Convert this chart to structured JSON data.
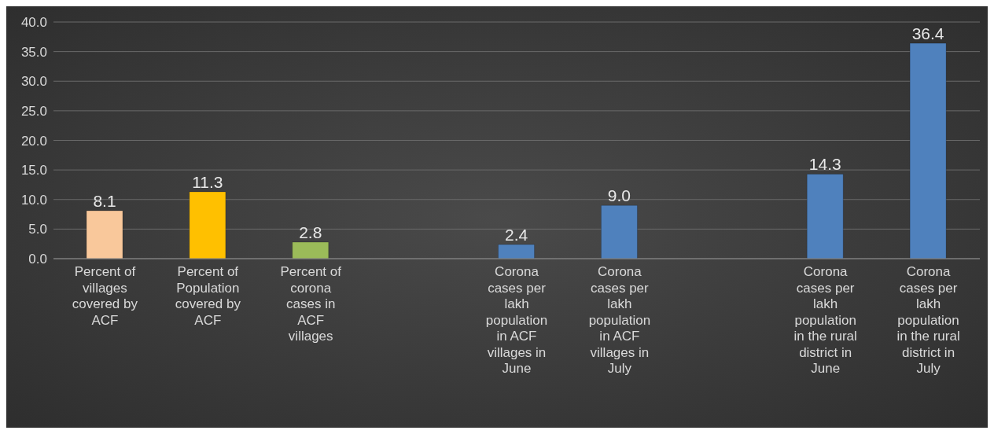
{
  "chart_data": {
    "type": "bar",
    "categories": [
      "Percent of villages covered by ACF",
      "Percent of Population covered by ACF",
      "Percent of corona cases in ACF villages",
      null,
      "Corona cases per lakh population in ACF villages in June",
      "Corona cases per lakh population in ACF villages in July",
      null,
      "Corona cases per lakh population in the rural district in June",
      "Corona cases per lakh population in the rural district in July"
    ],
    "values": [
      8.1,
      11.3,
      2.8,
      null,
      2.4,
      9.0,
      null,
      14.3,
      36.4
    ],
    "colors": [
      "#f9c89b",
      "#ffc000",
      "#9bbb59",
      "#4f81bd",
      "#4f81bd",
      "#4f81bd",
      "#4f81bd",
      "#4f81bd",
      "#4f81bd"
    ],
    "ylim": [
      0,
      40
    ],
    "yticks": [
      {
        "value": 0,
        "label": "0.0"
      },
      {
        "value": 5,
        "label": "5.0"
      },
      {
        "value": 10,
        "label": "10.0"
      },
      {
        "value": 15,
        "label": "15.0"
      },
      {
        "value": 20,
        "label": "20.0"
      },
      {
        "value": 25,
        "label": "25.0"
      },
      {
        "value": 30,
        "label": "30.0"
      },
      {
        "value": 35,
        "label": "35.0"
      },
      {
        "value": 40,
        "label": "40.0"
      }
    ],
    "value_labels": [
      "8.1",
      "11.3",
      "2.8",
      null,
      "2.4",
      "9.0",
      null,
      "14.3",
      "36.4"
    ],
    "grid": "y",
    "legend": false
  }
}
